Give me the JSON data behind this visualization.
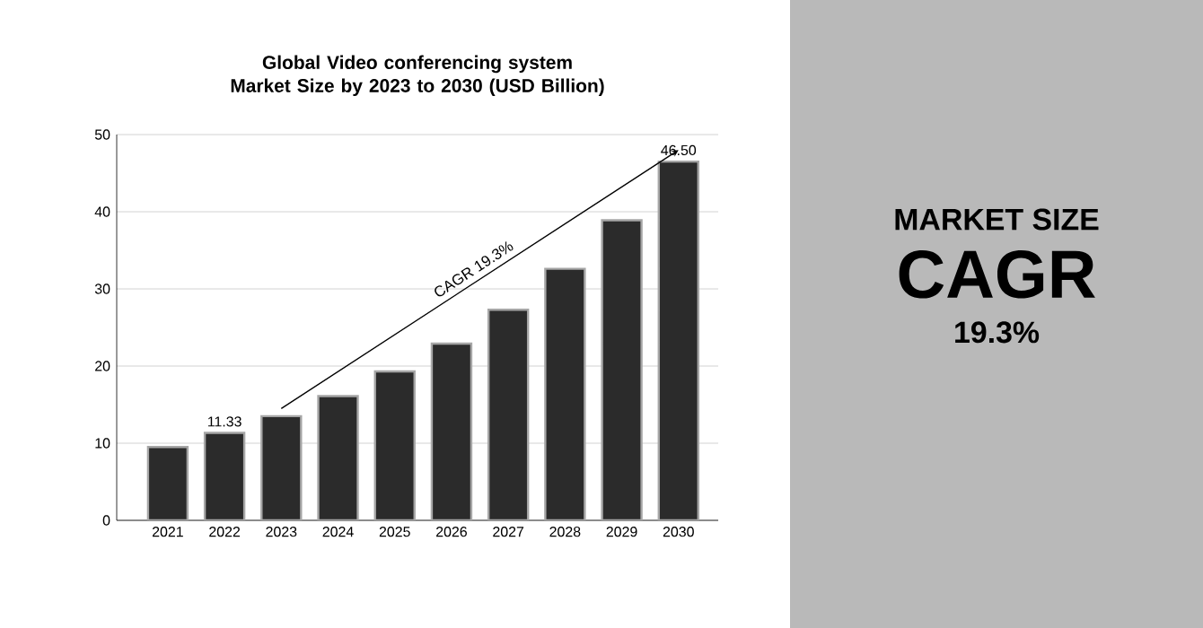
{
  "chart_data": [
    {
      "type": "bar",
      "title": "Global Video conferencing system  Market Size by 2023 to 2030 (USD Billion)",
      "categories": [
        "2021",
        "2022",
        "2023",
        "2024",
        "2025",
        "2026",
        "2027",
        "2028",
        "2029",
        "2030"
      ],
      "values": [
        9.5,
        11.33,
        13.5,
        16.1,
        19.3,
        22.9,
        27.3,
        32.6,
        38.9,
        46.5
      ],
      "value_labels": [
        null,
        "11.33",
        null,
        null,
        null,
        null,
        null,
        null,
        null,
        "46.50"
      ],
      "color": "#2b2b2b",
      "ylim": [
        0,
        50
      ],
      "yticks": [
        0,
        10,
        20,
        30,
        40,
        50
      ],
      "grid": "y",
      "annotations": [
        "CAGR 19.3%"
      ]
    },
    {
      "type": "other",
      "annotations": [
        "MARKET SIZE",
        "CAGR",
        "19.3%"
      ]
    }
  ]
}
